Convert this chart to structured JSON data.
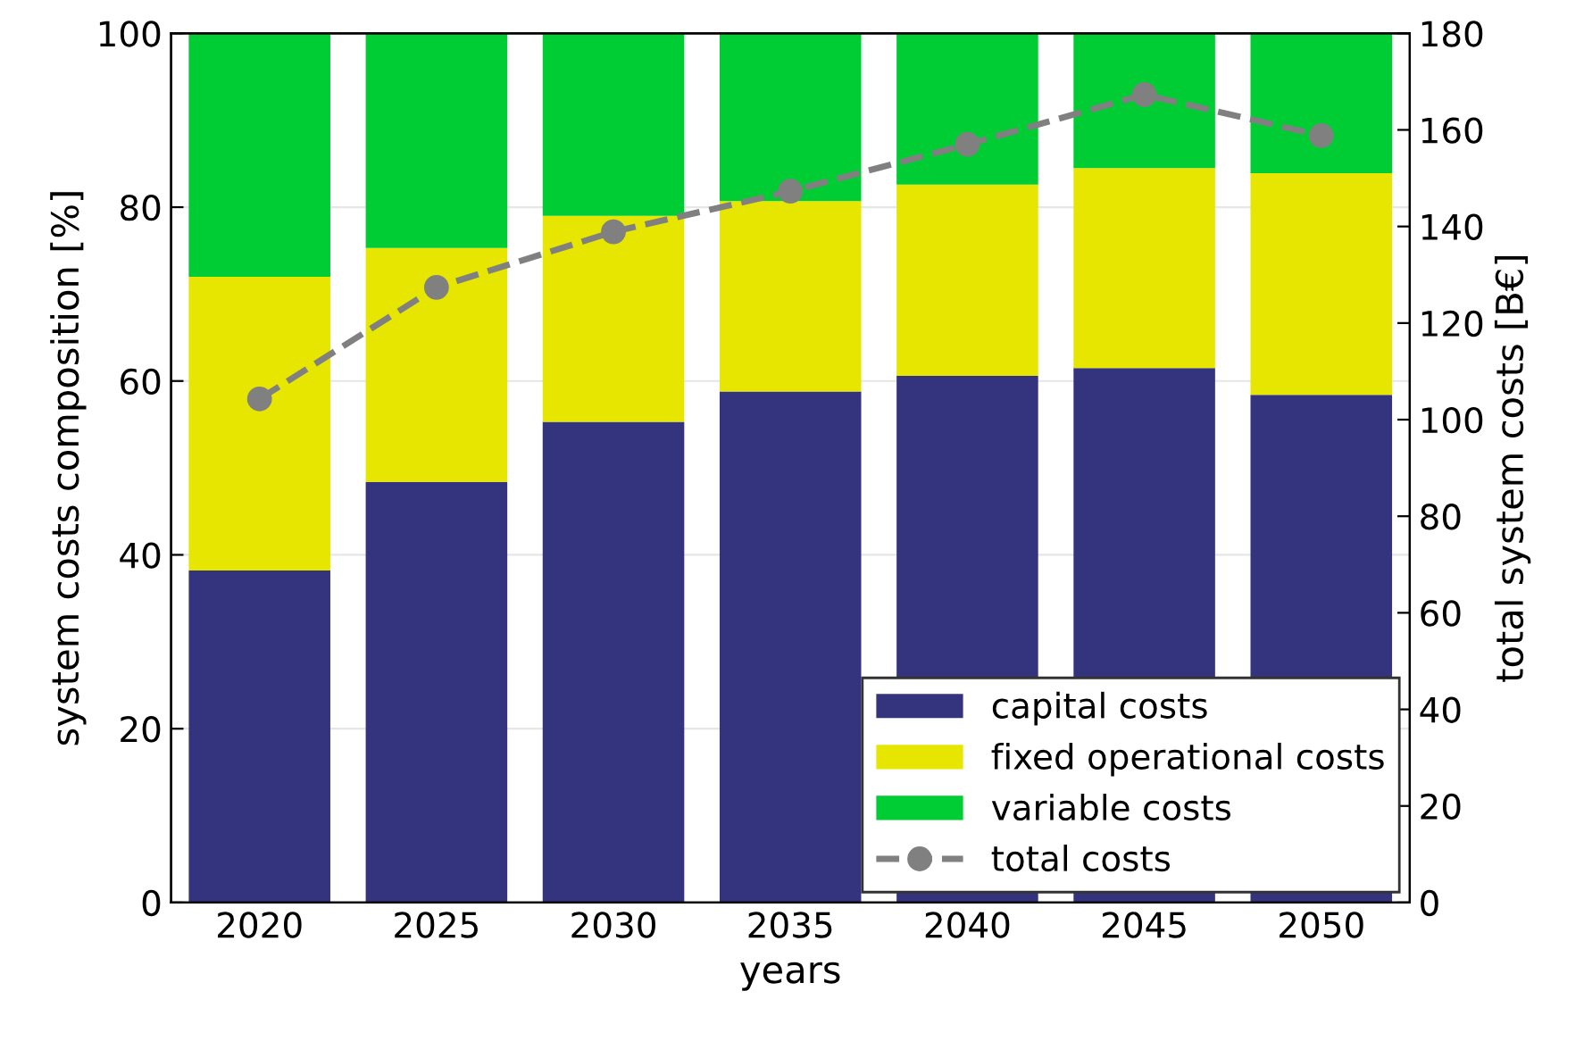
{
  "chart_data": {
    "type": "bar",
    "stacked": true,
    "xlabel": "years",
    "ylabel": "system costs composition [%]",
    "y2label": "total system costs [B€]",
    "categories": [
      "2020",
      "2025",
      "2030",
      "2035",
      "2040",
      "2045",
      "2050"
    ],
    "series": [
      {
        "name": "capital costs",
        "color": "#34347e",
        "values": [
          38.2,
          48.4,
          55.3,
          58.8,
          60.6,
          61.5,
          58.4
        ]
      },
      {
        "name": "fixed operational costs",
        "color": "#e6e600",
        "values": [
          33.8,
          26.9,
          23.7,
          21.9,
          22.0,
          23.0,
          25.5
        ]
      },
      {
        "name": "variable costs",
        "color": "#00cc33",
        "values": [
          28.0,
          24.7,
          21.0,
          19.3,
          17.4,
          15.5,
          16.1
        ]
      },
      {
        "name": "total costs",
        "type": "line",
        "axis": "y2",
        "color": "#808080",
        "marker": "circle",
        "line_style": "dashed",
        "values": [
          104.3,
          127.4,
          138.9,
          147.3,
          157.0,
          167.3,
          158.8
        ]
      }
    ],
    "ylim": [
      0,
      100
    ],
    "yticks": [
      0,
      20,
      40,
      60,
      80,
      100
    ],
    "y2lim": [
      0,
      180
    ],
    "y2ticks": [
      0,
      20,
      40,
      60,
      80,
      100,
      120,
      140,
      160,
      180
    ],
    "grid": "y",
    "legend": "bottom right"
  }
}
